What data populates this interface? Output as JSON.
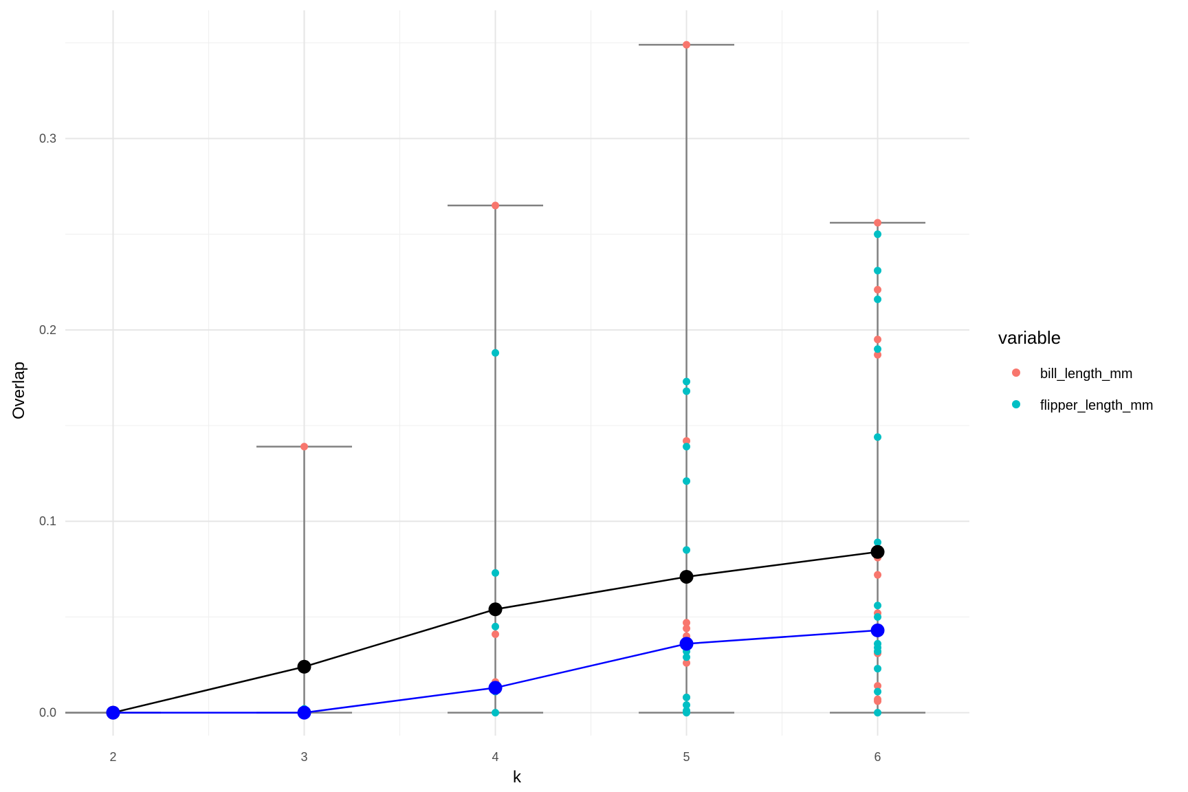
{
  "chart_data": {
    "type": "scatter",
    "xlabel": "k",
    "ylabel": "Overlap",
    "x_ticks": [
      "2",
      "3",
      "4",
      "5",
      "6"
    ],
    "y_ticks": [
      "0.0",
      "0.1",
      "0.2",
      "0.3"
    ],
    "xlim": [
      1.75,
      6.48
    ],
    "ylim": [
      -0.012,
      0.367
    ],
    "grid": true,
    "legend": {
      "title": "variable",
      "position": "right",
      "entries": [
        {
          "name": "bill_length_mm",
          "color": "#F8766D"
        },
        {
          "name": "flipper_length_mm",
          "color": "#00BFC4"
        }
      ]
    },
    "range_bars": [
      {
        "k": 2,
        "min": 0.0,
        "max": 0.0
      },
      {
        "k": 3,
        "min": 0.0,
        "max": 0.139
      },
      {
        "k": 4,
        "min": 0.0,
        "max": 0.265
      },
      {
        "k": 5,
        "min": 0.0,
        "max": 0.349
      },
      {
        "k": 6,
        "min": 0.0,
        "max": 0.256
      }
    ],
    "series": [
      {
        "name": "bill_length_mm",
        "color": "#F8766D",
        "points": [
          {
            "k": 2,
            "values": [
              0.0
            ]
          },
          {
            "k": 3,
            "values": [
              0.139,
              0.0
            ]
          },
          {
            "k": 4,
            "values": [
              0.265,
              0.041,
              0.016,
              0.011
            ]
          },
          {
            "k": 5,
            "values": [
              0.349,
              0.142,
              0.047,
              0.044,
              0.04,
              0.026,
              0.008
            ]
          },
          {
            "k": 6,
            "values": [
              0.256,
              0.221,
              0.195,
              0.187,
              0.081,
              0.072,
              0.052,
              0.031,
              0.014,
              0.007,
              0.006
            ]
          }
        ]
      },
      {
        "name": "flipper_length_mm",
        "color": "#00BFC4",
        "points": [
          {
            "k": 2,
            "values": [
              0.0
            ]
          },
          {
            "k": 3,
            "values": [
              0.002,
              0.0
            ]
          },
          {
            "k": 4,
            "values": [
              0.188,
              0.073,
              0.045,
              0.011,
              0.0
            ]
          },
          {
            "k": 5,
            "values": [
              0.173,
              0.168,
              0.139,
              0.121,
              0.085,
              0.032,
              0.029,
              0.008,
              0.004,
              0.001,
              0.0
            ]
          },
          {
            "k": 6,
            "values": [
              0.25,
              0.231,
              0.216,
              0.19,
              0.144,
              0.089,
              0.056,
              0.05,
              0.036,
              0.034,
              0.032,
              0.023,
              0.011,
              0.0
            ]
          }
        ]
      }
    ],
    "summary_lines": [
      {
        "color": "#000000",
        "k": [
          2,
          3,
          4,
          5,
          6
        ],
        "values": [
          0.0,
          0.024,
          0.054,
          0.071,
          0.084
        ]
      },
      {
        "color": "#0000FF",
        "k": [
          2,
          3,
          4,
          5,
          6
        ],
        "values": [
          0.0,
          0.0,
          0.013,
          0.036,
          0.043
        ]
      }
    ]
  }
}
